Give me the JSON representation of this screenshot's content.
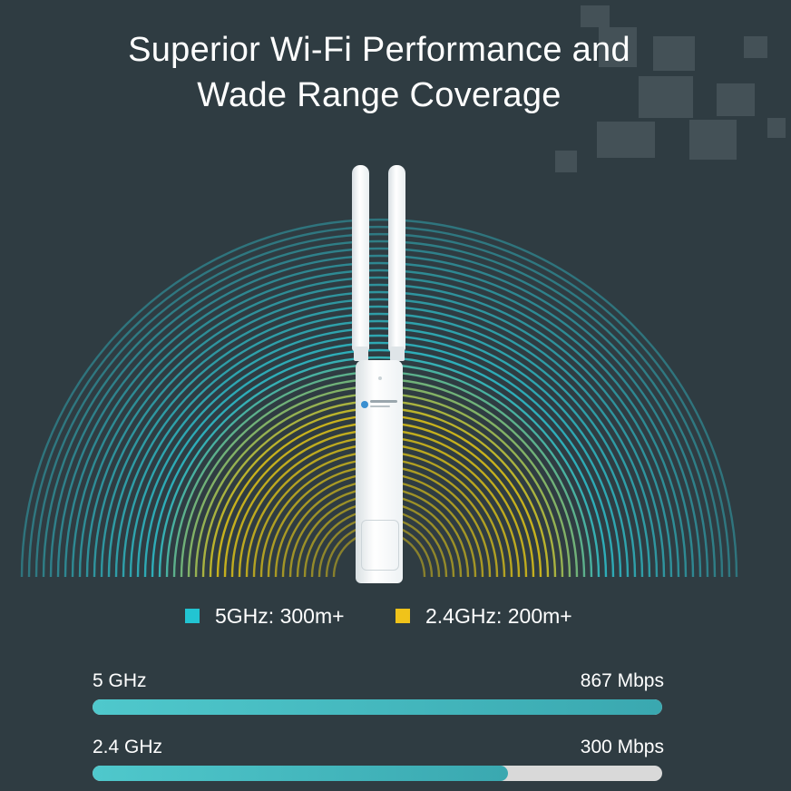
{
  "header": {
    "title_line1": "Superior Wi-Fi Performance and",
    "title_line2": "Wade Range Coverage"
  },
  "device": {
    "icon": "access-point-icon"
  },
  "coverage": {
    "colors": {
      "ghz5": "#2fc3cf",
      "ghz24": "#e5c817",
      "background": "#2f3c42"
    }
  },
  "legend": [
    {
      "label": "5GHz: 300m+",
      "color": "#22c4d2"
    },
    {
      "label": "2.4GHz: 200m+",
      "color": "#f0c31a"
    }
  ],
  "speeds": [
    {
      "band": "5 GHz",
      "speed": "867 Mbps",
      "fill_fraction": 1.0,
      "color": "#4fc8cc"
    },
    {
      "band": "2.4 GHz",
      "speed": "300 Mbps",
      "fill_fraction": 0.73,
      "color": "#4fc8cc"
    }
  ]
}
